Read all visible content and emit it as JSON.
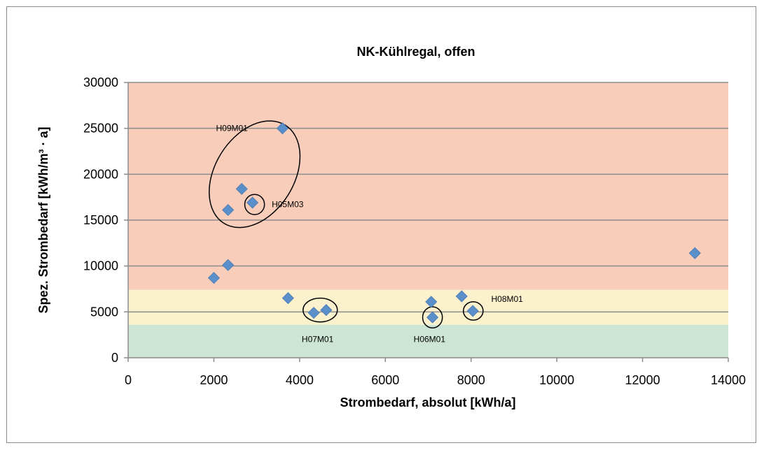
{
  "chart_data": {
    "type": "scatter",
    "title": "NK-Kühlregal, offen",
    "xlabel": "Strombedarf, absolut [kWh/a]",
    "ylabel": "Spez. Strombedarf [kWh/m³ · a]",
    "xlim": [
      0,
      14000
    ],
    "ylim": [
      0,
      30000
    ],
    "x_ticks": [
      "0",
      "2000",
      "4000",
      "6000",
      "8000",
      "10000",
      "12000",
      "14000"
    ],
    "y_ticks": [
      "0",
      "5000",
      "10000",
      "15000",
      "20000",
      "25000",
      "30000"
    ],
    "grid": true,
    "legend": "none",
    "bands": [
      {
        "from": 0,
        "to": 3600,
        "color": "#cde5d4"
      },
      {
        "from": 3600,
        "to": 7400,
        "color": "#fbf1cc"
      },
      {
        "from": 7400,
        "to": 30000,
        "color": "#f8cdb9"
      }
    ],
    "marker_color": "#5b8fca",
    "points": [
      {
        "x": 2000,
        "y": 8700
      },
      {
        "x": 2330,
        "y": 10100
      },
      {
        "x": 2330,
        "y": 16100
      },
      {
        "x": 2650,
        "y": 18400
      },
      {
        "x": 2900,
        "y": 16900
      },
      {
        "x": 3600,
        "y": 25000
      },
      {
        "x": 3730,
        "y": 6500
      },
      {
        "x": 4330,
        "y": 4900
      },
      {
        "x": 4620,
        "y": 5200
      },
      {
        "x": 7070,
        "y": 6100
      },
      {
        "x": 7100,
        "y": 4400
      },
      {
        "x": 7780,
        "y": 6700
      },
      {
        "x": 8040,
        "y": 5100
      },
      {
        "x": 13220,
        "y": 11400
      }
    ],
    "annotations": [
      {
        "label": "H09M01",
        "text_x": 2050,
        "text_y": 25000,
        "ellipse": {
          "cx": 2950,
          "cy": 20000,
          "rx": 920,
          "ry": 6300
        }
      },
      {
        "label": "H05M03",
        "text_x": 3350,
        "text_y": 16700,
        "ellipse": {
          "cx": 2950,
          "cy": 16700,
          "rx": 230,
          "ry": 1100
        }
      },
      {
        "label": "H07M01",
        "text_x": 4050,
        "text_y": 2000,
        "ellipse": {
          "cx": 4480,
          "cy": 5200,
          "rx": 400,
          "ry": 1300
        }
      },
      {
        "label": "H06M01",
        "text_x": 6660,
        "text_y": 2000,
        "ellipse": {
          "cx": 7100,
          "cy": 4400,
          "rx": 230,
          "ry": 1150
        }
      },
      {
        "label": "H08M01",
        "text_x": 8470,
        "text_y": 6400,
        "ellipse": {
          "cx": 8050,
          "cy": 5100,
          "rx": 230,
          "ry": 1000
        }
      }
    ]
  }
}
